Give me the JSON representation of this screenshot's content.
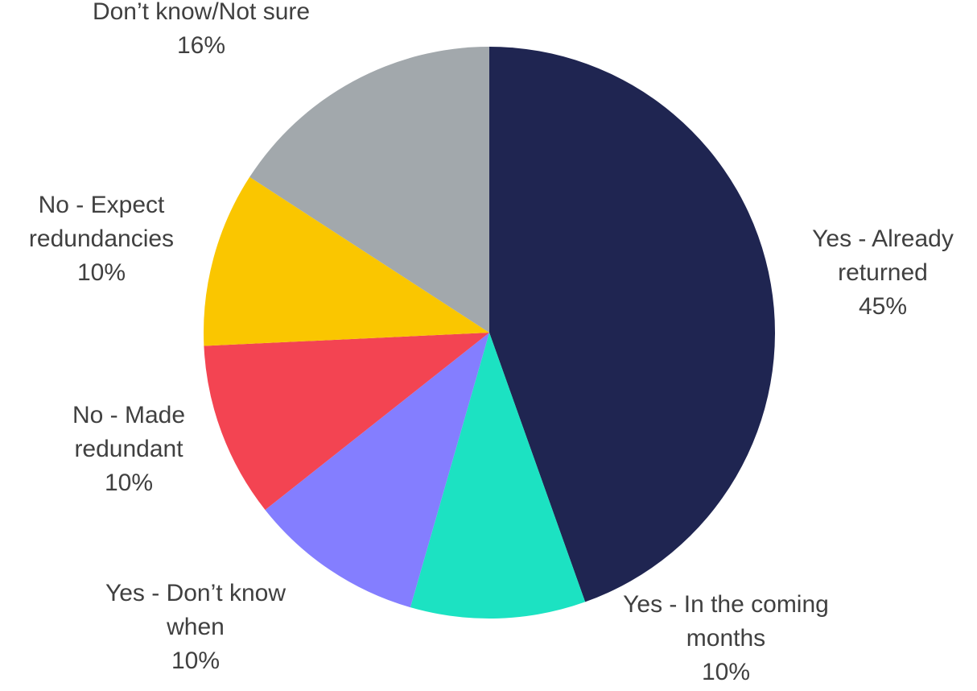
{
  "chart_data": {
    "type": "pie",
    "title": "",
    "start_angle_deg": 0,
    "direction": "clockwise",
    "slices": [
      {
        "label_lines": [
          "Yes - Already",
          "returned"
        ],
        "value": 45,
        "value_label": "45%",
        "color": "#1F2551"
      },
      {
        "label_lines": [
          "Yes - In the coming",
          "months"
        ],
        "value": 10,
        "value_label": "10%",
        "color": "#1CE2C2"
      },
      {
        "label_lines": [
          "Yes - Don’t know",
          "when"
        ],
        "value": 10,
        "value_label": "10%",
        "color": "#847EFF"
      },
      {
        "label_lines": [
          "No - Made",
          "redundant"
        ],
        "value": 10,
        "value_label": "10%",
        "color": "#F34452"
      },
      {
        "label_lines": [
          "No - Expect",
          "redundancies"
        ],
        "value": 10,
        "value_label": "10%",
        "color": "#FAC600"
      },
      {
        "label_lines": [
          "Don’t know/Not sure"
        ],
        "value": 16,
        "value_label": "16%",
        "color": "#A2A8AC"
      }
    ]
  }
}
